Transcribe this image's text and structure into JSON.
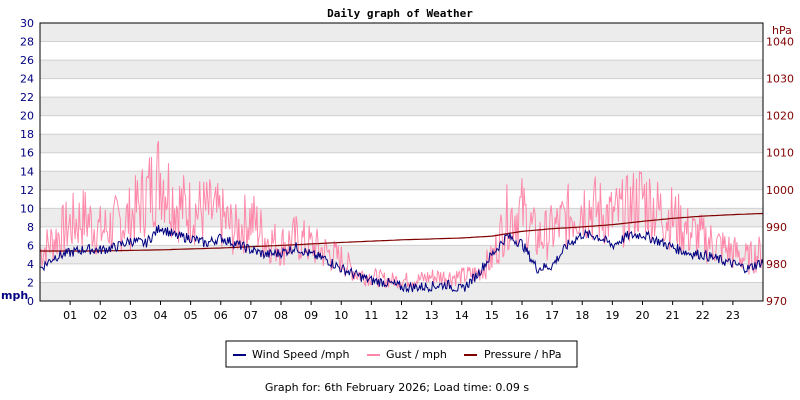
{
  "chart_data": {
    "type": "line",
    "title": "Daily graph of Weather",
    "left_axis": {
      "unit": "mph",
      "range": [
        0,
        30
      ],
      "ticks": [
        0,
        2,
        4,
        6,
        8,
        10,
        12,
        14,
        16,
        18,
        20,
        22,
        24,
        26,
        28,
        30
      ],
      "color": "#000080"
    },
    "right_axis": {
      "unit": "hPa",
      "range": [
        970,
        1045
      ],
      "ticks": [
        970,
        980,
        990,
        1000,
        1010,
        1020,
        1030,
        1040
      ],
      "color": "#800000"
    },
    "x_axis": {
      "range_hours": [
        0,
        24
      ],
      "tick_labels": [
        "01",
        "02",
        "03",
        "04",
        "05",
        "06",
        "07",
        "08",
        "09",
        "10",
        "11",
        "12",
        "13",
        "14",
        "15",
        "16",
        "17",
        "18",
        "19",
        "20",
        "21",
        "22",
        "23"
      ]
    },
    "grid": "horizontal-bands",
    "legend_position": "bottom-center",
    "series": [
      {
        "name": "Wind Speed /mph",
        "axis": "left",
        "color": "#000080",
        "x": [
          0,
          0.5,
          1,
          1.5,
          2,
          2.5,
          3,
          3.5,
          4,
          4.5,
          5,
          5.5,
          6,
          6.5,
          7,
          7.5,
          8,
          8.5,
          9,
          9.5,
          10,
          10.5,
          11,
          11.5,
          12,
          12.5,
          13,
          13.5,
          14,
          14.5,
          15,
          15.5,
          16,
          16.5,
          17,
          17.5,
          18,
          18.5,
          19,
          19.5,
          20,
          20.5,
          21,
          21.5,
          22,
          22.5,
          23,
          23.5,
          23.95
        ],
        "y": [
          3.5,
          4.8,
          5.2,
          5.6,
          5.5,
          5.8,
          6.5,
          6.2,
          8.0,
          7.0,
          6.8,
          6.2,
          6.8,
          6.2,
          5.5,
          5.0,
          5.2,
          5.8,
          5.0,
          4.5,
          3.5,
          2.8,
          2.2,
          2.0,
          1.5,
          1.5,
          1.6,
          1.8,
          1.2,
          2.8,
          5.0,
          7.0,
          6.2,
          3.5,
          3.8,
          6.0,
          7.2,
          7.0,
          6.0,
          7.0,
          7.2,
          6.5,
          5.8,
          5.2,
          5.0,
          4.5,
          4.0,
          3.5,
          4.2
        ]
      },
      {
        "name": "Gust / mph",
        "axis": "left",
        "color": "#ff88aa",
        "x": [
          0,
          0.5,
          1,
          1.5,
          2,
          2.5,
          3,
          3.5,
          4,
          4.5,
          5,
          5.5,
          6,
          6.5,
          7,
          7.5,
          8,
          8.5,
          9,
          9.5,
          10,
          10.5,
          11,
          11.5,
          12,
          12.5,
          13,
          13.5,
          14,
          14.5,
          15,
          15.5,
          16,
          16.5,
          17,
          17.5,
          18,
          18.5,
          19,
          19.5,
          20,
          20.5,
          21,
          21.5,
          22,
          22.5,
          23,
          23.5,
          23.95
        ],
        "y": [
          7,
          9,
          11,
          12,
          10,
          11,
          12,
          15,
          18.5,
          14,
          13,
          13,
          12,
          10,
          12,
          9,
          8,
          9,
          8,
          7,
          6,
          4,
          3.5,
          3,
          3,
          3,
          3.5,
          3.5,
          3.5,
          4,
          6,
          12,
          13,
          9,
          10,
          12,
          14,
          13,
          12,
          13,
          15,
          13,
          12,
          10,
          9,
          8,
          7,
          6,
          7
        ]
      },
      {
        "name": "Pressure / hPa",
        "axis": "right",
        "color": "#800000",
        "x": [
          0,
          2,
          4,
          6,
          8,
          10,
          12,
          14,
          15,
          16,
          17,
          18,
          19,
          20,
          21,
          22,
          23,
          23.95
        ],
        "y": [
          983.5,
          983.5,
          983.8,
          984.3,
          985.0,
          985.8,
          986.5,
          987.0,
          987.5,
          988.8,
          989.5,
          990.0,
          990.6,
          991.5,
          992.3,
          992.9,
          993.3,
          993.6
        ]
      }
    ]
  },
  "footer": "Graph for: 6th February 2026; Load time: 0.09 s"
}
